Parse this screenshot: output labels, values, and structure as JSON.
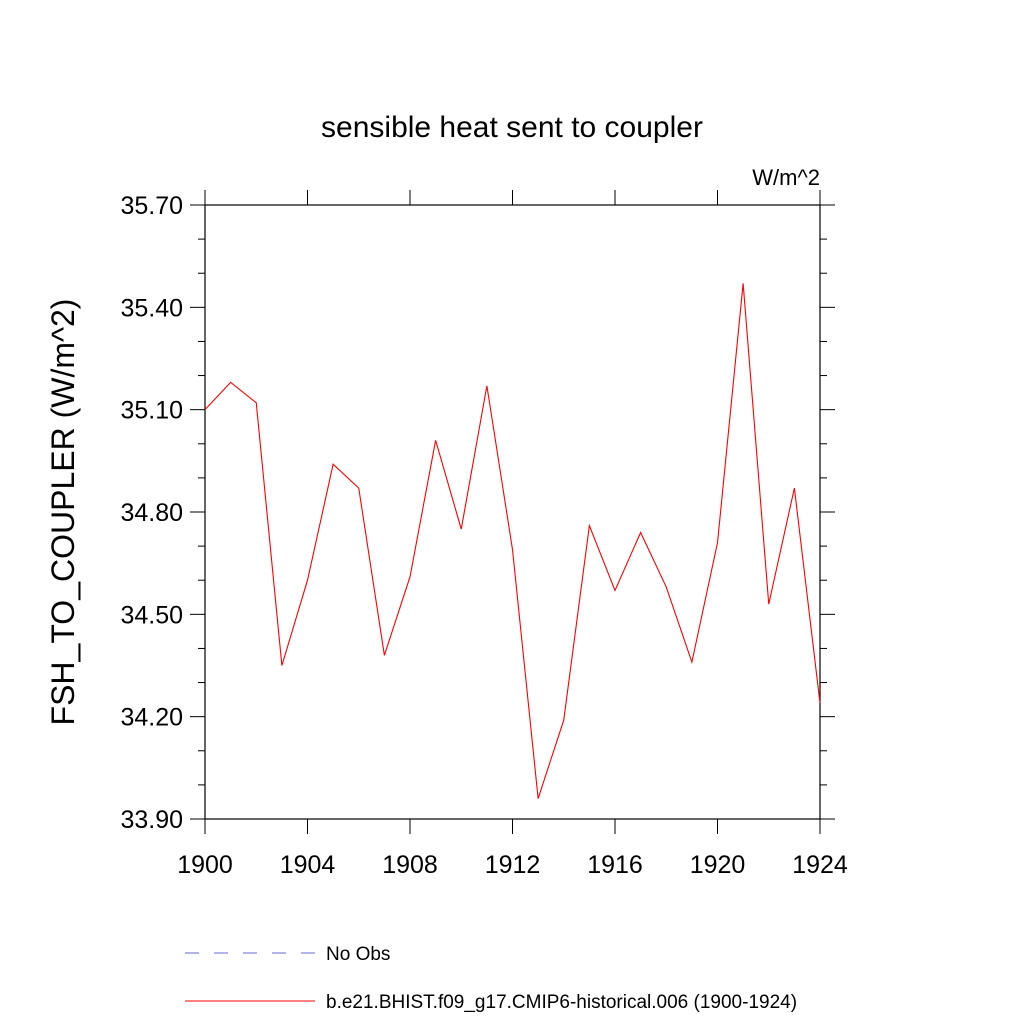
{
  "chart_data": {
    "type": "line",
    "title": "sensible heat sent to coupler",
    "units_label": "W/m^2",
    "ylabel": "FSH_TO_COUPLER  (W/m^2)",
    "xlabel": "",
    "xlim": [
      1900,
      1924
    ],
    "ylim": [
      33.9,
      35.7
    ],
    "x_ticks": [
      "1900",
      "1904",
      "1908",
      "1912",
      "1916",
      "1920",
      "1924"
    ],
    "y_ticks": [
      "33.90",
      "34.20",
      "34.50",
      "34.80",
      "35.10",
      "35.40",
      "35.70"
    ],
    "grid": false,
    "legend_position": "bottom",
    "series": [
      {
        "name": "b.e21.BHIST.f09_g17.CMIP6-historical.006 (1900-1924)",
        "color": "#ff0000",
        "style": "solid",
        "x": [
          1900,
          1901,
          1902,
          1903,
          1904,
          1905,
          1906,
          1907,
          1908,
          1909,
          1910,
          1911,
          1912,
          1913,
          1914,
          1915,
          1916,
          1917,
          1918,
          1919,
          1920,
          1921,
          1922,
          1923,
          1924
        ],
        "values": [
          35.1,
          35.18,
          35.12,
          34.35,
          34.6,
          34.94,
          34.87,
          34.38,
          34.61,
          35.01,
          34.75,
          35.17,
          34.69,
          33.96,
          34.19,
          34.76,
          34.57,
          34.74,
          34.58,
          34.36,
          34.71,
          35.47,
          34.53,
          34.87,
          34.24
        ]
      }
    ],
    "legend_entries": [
      {
        "label": "No Obs",
        "color": "#6a6ad0",
        "style": "dashed"
      },
      {
        "label": "b.e21.BHIST.f09_g17.CMIP6-historical.006 (1900-1924)",
        "color": "#ff0000",
        "style": "solid"
      }
    ]
  }
}
